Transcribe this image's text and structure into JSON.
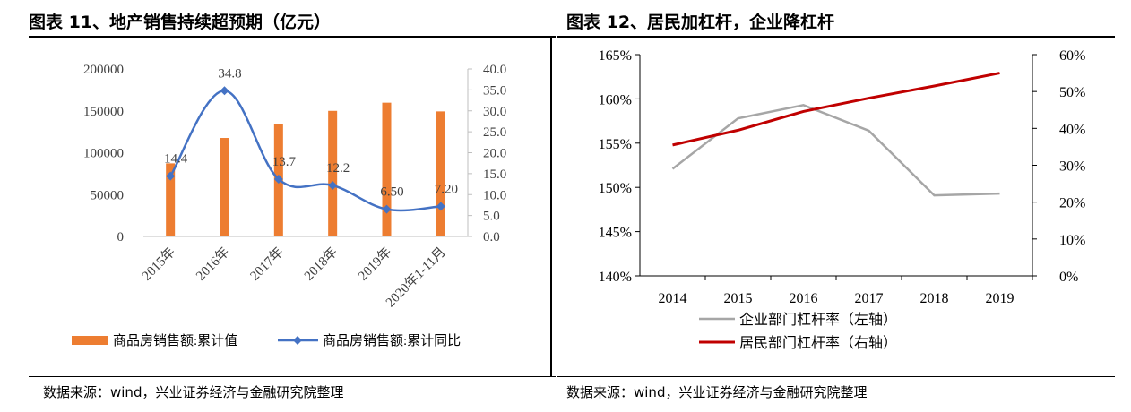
{
  "left": {
    "title": "图表 11、地产销售持续超预期（亿元）",
    "source": "数据来源：wind，兴业证券经济与金融研究院整理",
    "chart_data": {
      "type": "bar+line",
      "categories": [
        "2015年",
        "2016年",
        "2017年",
        "2018年",
        "2019年",
        "2020年1-11月"
      ],
      "series": [
        {
          "name": "商品房销售额:累计值",
          "type": "bar",
          "axis": "left",
          "color": "#ED7D31",
          "values": [
            87281,
            117627,
            133701,
            149973,
            159725,
            149325
          ]
        },
        {
          "name": "商品房销售额:累计同比",
          "type": "line",
          "axis": "right",
          "color": "#4472C4",
          "values": [
            14.4,
            34.8,
            13.7,
            12.2,
            6.5,
            7.2
          ],
          "labels": [
            "14.4",
            "34.8",
            "13.7",
            "12.2",
            "6.50",
            "7.20"
          ]
        }
      ],
      "y_left": {
        "min": 0,
        "max": 200000,
        "ticks": [
          "0",
          "50000",
          "100000",
          "150000",
          "200000"
        ]
      },
      "y_right": {
        "min": 0,
        "max": 40,
        "ticks": [
          "0.0",
          "5.0",
          "10.0",
          "15.0",
          "20.0",
          "25.0",
          "30.0",
          "35.0",
          "40.0"
        ]
      },
      "grid": false,
      "legend": "bottom"
    }
  },
  "right": {
    "title": "图表 12、居民加杠杆，企业降杠杆",
    "source": "数据来源：wind，兴业证券经济与金融研究院整理",
    "chart_data": {
      "type": "line",
      "x": [
        "2014",
        "2015",
        "2016",
        "2017",
        "2018",
        "2019"
      ],
      "series": [
        {
          "name": "企业部门杠杆率（左轴）",
          "axis": "left",
          "color": "#A6A6A6",
          "values": [
            152.1,
            157.8,
            159.3,
            156.4,
            149.1,
            149.3
          ]
        },
        {
          "name": "居民部门杠杆率（右轴）",
          "axis": "right",
          "color": "#C00000",
          "values": [
            35.5,
            39.5,
            44.6,
            48.2,
            51.5,
            55.0
          ]
        }
      ],
      "y_left": {
        "min": 140,
        "max": 165,
        "ticks": [
          "140%",
          "145%",
          "150%",
          "155%",
          "160%",
          "165%"
        ]
      },
      "y_right": {
        "min": 0,
        "max": 60,
        "ticks": [
          "0%",
          "10%",
          "20%",
          "30%",
          "40%",
          "50%",
          "60%"
        ]
      },
      "grid": false,
      "legend": "bottom"
    }
  }
}
